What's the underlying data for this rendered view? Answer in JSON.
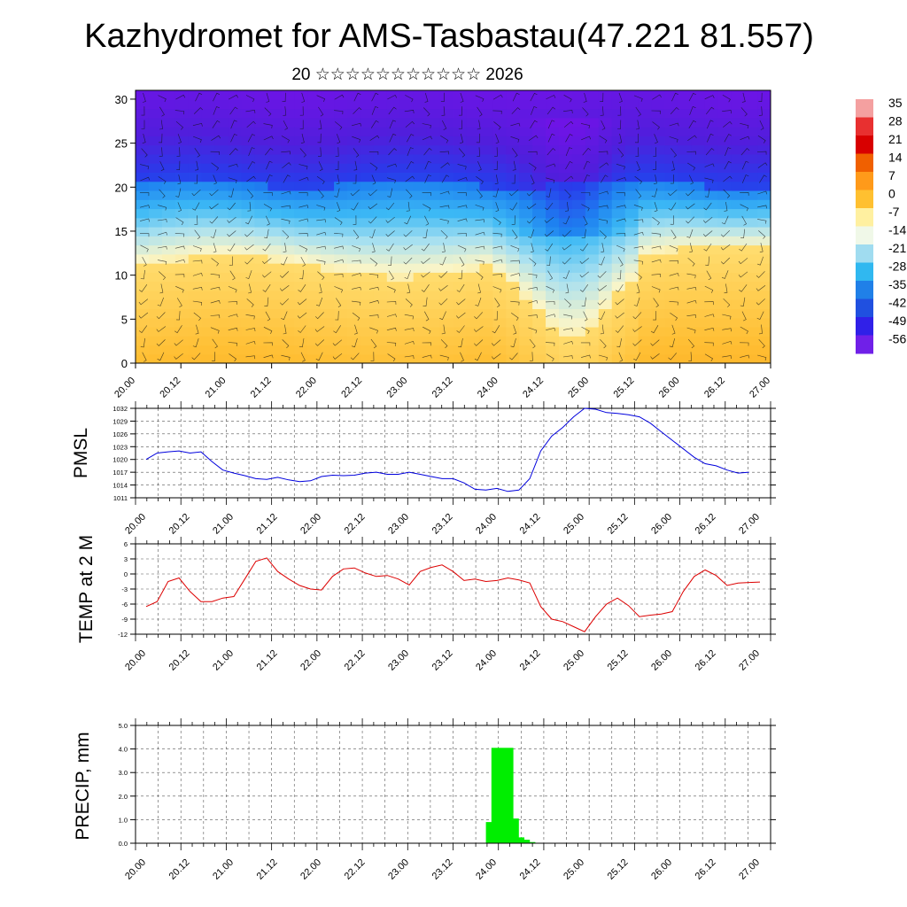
{
  "title": "Kazhydromet for AMS-Tasbastau(47.221 81.557)",
  "subtitle": "20 ☆☆☆☆☆☆☆☆☆☆☆ 2026",
  "time_ticks": [
    "20.00",
    "20.12",
    "21.00",
    "21.12",
    "22.00",
    "22.12",
    "23.00",
    "23.12",
    "24.00",
    "24.12",
    "25.00",
    "25.12",
    "26.00",
    "26.12",
    "27.00"
  ],
  "chart_data": [
    {
      "id": "cross-section",
      "type": "heatmap",
      "description_note": "temperature cross-section with wind barbs",
      "xlim": [
        0,
        14
      ],
      "ylim": [
        0,
        30
      ],
      "yticks": [
        0,
        5,
        10,
        15,
        20,
        25,
        30
      ],
      "legend": {
        "labels": [
          "35",
          "28",
          "21",
          "14",
          "7",
          "0",
          "-7",
          "-14",
          "-21",
          "-28",
          "-35",
          "-42",
          "-49",
          "-56"
        ],
        "colors": [
          "#f4a0a0",
          "#e83030",
          "#d80000",
          "#f06000",
          "#ff9a1a",
          "#ffc030",
          "#fff0a0",
          "#f0f8e8",
          "#a0dcf0",
          "#30b8f0",
          "#2080e8",
          "#2050e0",
          "#3020e8",
          "#7020e8"
        ]
      }
    },
    {
      "id": "pmsl",
      "type": "line",
      "ylabel": "PMSL",
      "ylim": [
        1011,
        1032
      ],
      "yticks": [
        1011,
        1014,
        1017,
        1020,
        1023,
        1026,
        1029,
        1032
      ],
      "color": "#0000dd",
      "x_step": 0.25,
      "values": [
        1020,
        1021.5,
        1021.8,
        1022,
        1021.5,
        1021.8,
        1019.5,
        1017.5,
        1016.8,
        1016.2,
        1015.5,
        1015.3,
        1015.8,
        1015.2,
        1014.8,
        1015,
        1016,
        1016.3,
        1016.2,
        1016.3,
        1016.8,
        1017,
        1016.5,
        1016.5,
        1017,
        1016.5,
        1016,
        1015.5,
        1015.5,
        1014.5,
        1013,
        1012.8,
        1013.2,
        1012.5,
        1012.8,
        1015.5,
        1022,
        1025.5,
        1027.5,
        1030,
        1032,
        1031.8,
        1031,
        1030.8,
        1030.5,
        1030,
        1028.5,
        1026.5,
        1024.5,
        1022.5,
        1020.5,
        1019,
        1018.5,
        1017.5,
        1016.8,
        1017
      ]
    },
    {
      "id": "temp2m",
      "type": "line",
      "ylabel": "TEMP at 2 M",
      "ylim": [
        -12,
        6
      ],
      "yticks": [
        -12,
        -9,
        -6,
        -3,
        0,
        3,
        6
      ],
      "color": "#dd0000",
      "x_step": 0.25,
      "values": [
        -6.5,
        -5.5,
        -1.5,
        -0.8,
        -3.5,
        -5.5,
        -5.5,
        -4.8,
        -4.5,
        -1,
        2.5,
        3.2,
        0.5,
        -1,
        -2.3,
        -3,
        -3.2,
        -0.5,
        1,
        1.2,
        0.2,
        -0.5,
        -0.3,
        -1,
        -2.2,
        0.5,
        1.3,
        1.8,
        0.5,
        -1.3,
        -1,
        -1.5,
        -1.3,
        -0.8,
        -1.2,
        -1.8,
        -6.5,
        -9,
        -9.5,
        -10.5,
        -11.5,
        -8.5,
        -6,
        -4.8,
        -6.3,
        -8.5,
        -8.2,
        -8,
        -7.5,
        -3.5,
        -0.5,
        0.8,
        -0.3,
        -2.3,
        -1.8,
        -1.7,
        -1.6
      ]
    },
    {
      "id": "precip",
      "type": "bar",
      "ylabel": "PRECIP, mm",
      "ylim": [
        0,
        5
      ],
      "yticks": [
        "0.0",
        "1.0",
        "2.0",
        "3.0",
        "4.0",
        "5.0"
      ],
      "color": "#00ee00",
      "bar_width": 0.25,
      "bars": [
        {
          "x": 16.0,
          "value": 0.9
        },
        {
          "x": 16.25,
          "value": 4.05
        },
        {
          "x": 16.5,
          "value": 1.05
        },
        {
          "x": 16.75,
          "value": 0.25
        },
        {
          "x": 17.0,
          "value": 0.15
        },
        {
          "x": 17.25,
          "value": 0.05
        }
      ]
    }
  ]
}
